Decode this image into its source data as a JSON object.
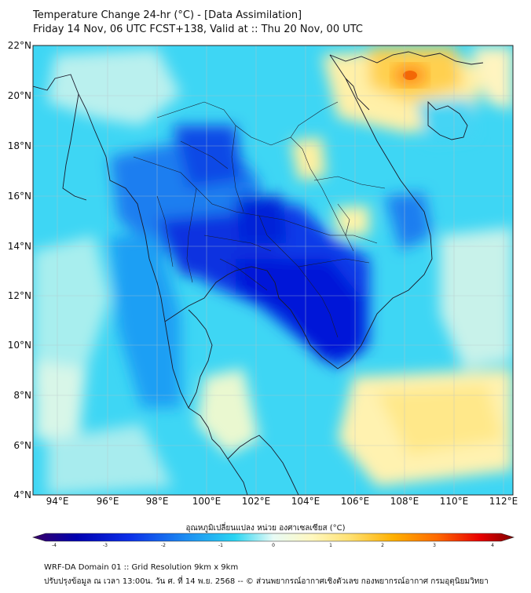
{
  "header": {
    "title_line1": "Temperature Change 24-hr (°C) - [Data Assimilation]",
    "title_line2": "Friday 14 Nov, 06 UTC FCST+138, Valid at :: Thu 20 Nov, 00 UTC"
  },
  "map": {
    "lat_labels": [
      "22°N",
      "20°N",
      "18°N",
      "16°N",
      "14°N",
      "12°N",
      "10°N",
      "8°N",
      "6°N",
      "4°N"
    ],
    "lon_labels": [
      "94°E",
      "96°E",
      "98°E",
      "100°E",
      "102°E",
      "104°E",
      "106°E",
      "108°E",
      "110°E",
      "112°E"
    ]
  },
  "colorbar": {
    "title": "อุณหภูมิเปลี่ยนแปลง หน่วย องศาเซลเซียส (°C)",
    "ticks": [
      "-4",
      "-3",
      "-2",
      "-1",
      "0",
      "1",
      "2",
      "3",
      "4"
    ],
    "range": [
      -4,
      4
    ],
    "colors": [
      "#3a0066",
      "#0000b0",
      "#0c2fe8",
      "#1c8ef2",
      "#2ad5f2",
      "#b8f0ea",
      "#fff8c0",
      "#ffe070",
      "#ffb000",
      "#ff6a00",
      "#e80000",
      "#800000"
    ]
  },
  "footer": {
    "line1": "WRF-DA Domain 01 :: Grid Resolution 9km x 9km",
    "line2": "ปรับปรุงข้อมูล ณ เวลา 13:00น. วัน ศ. ที่ 14 พ.ย. 2568 -- © ส่วนพยากรณ์อากาศเชิงตัวเลข กองพยากรณ์อากาศ กรมอุตุนิยมวิทยา"
  }
}
